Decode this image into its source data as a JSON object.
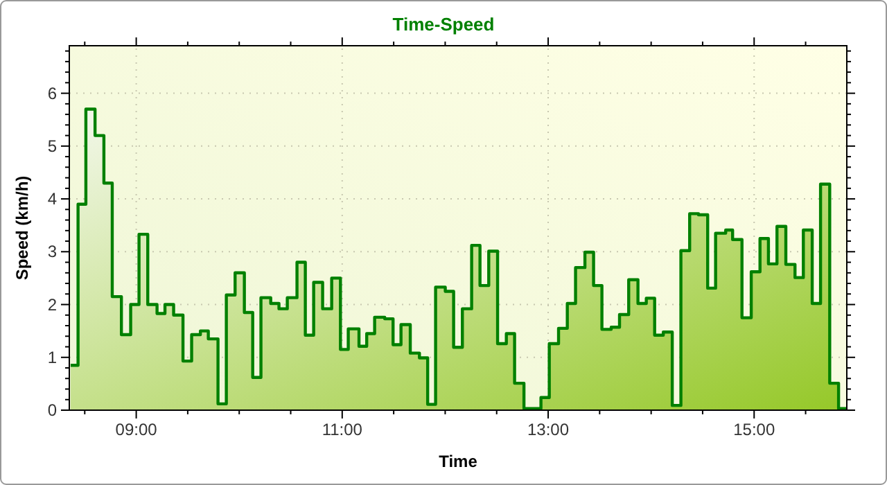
{
  "chart_data": {
    "type": "area",
    "title": "Time-Speed",
    "xlabel": "Time",
    "ylabel": "Speed (km/h)",
    "line_style": "solid",
    "grid": true,
    "x": [
      8.363,
      8.435,
      8.435,
      8.511,
      8.511,
      8.6,
      8.6,
      8.686,
      8.686,
      8.767,
      8.767,
      8.856,
      8.856,
      8.946,
      8.946,
      9.027,
      9.027,
      9.112,
      9.112,
      9.202,
      9.202,
      9.279,
      9.279,
      9.363,
      9.363,
      9.454,
      9.454,
      9.538,
      9.538,
      9.623,
      9.623,
      9.7,
      9.7,
      9.794,
      9.794,
      9.875,
      9.875,
      9.96,
      9.96,
      10.05,
      10.05,
      10.131,
      10.131,
      10.211,
      10.211,
      10.306,
      10.306,
      10.386,
      10.386,
      10.467,
      10.467,
      10.561,
      10.561,
      10.642,
      10.642,
      10.723,
      10.723,
      10.81,
      10.81,
      10.898,
      10.898,
      10.983,
      10.983,
      11.059,
      11.059,
      11.163,
      11.163,
      11.238,
      11.238,
      11.315,
      11.315,
      11.413,
      11.413,
      11.494,
      11.494,
      11.571,
      11.571,
      11.661,
      11.661,
      11.75,
      11.75,
      11.83,
      11.83,
      11.907,
      11.907,
      12.001,
      12.001,
      12.082,
      12.082,
      12.167,
      12.167,
      12.257,
      12.257,
      12.338,
      12.338,
      12.423,
      12.423,
      12.509,
      12.509,
      12.594,
      12.594,
      12.674,
      12.674,
      12.765,
      12.765,
      12.93,
      12.93,
      13.011,
      13.011,
      13.101,
      13.101,
      13.186,
      13.186,
      13.266,
      13.266,
      13.357,
      13.357,
      13.441,
      13.441,
      13.522,
      13.522,
      13.612,
      13.612,
      13.693,
      13.693,
      13.782,
      13.782,
      13.872,
      13.872,
      13.953,
      13.953,
      14.034,
      14.034,
      14.118,
      14.118,
      14.205,
      14.205,
      14.289,
      14.289,
      14.374,
      14.374,
      14.46,
      14.46,
      14.549,
      14.549,
      14.626,
      14.626,
      14.724,
      14.724,
      14.791,
      14.791,
      14.882,
      14.882,
      14.972,
      14.972,
      15.057,
      15.057,
      15.139,
      15.139,
      15.222,
      15.222,
      15.308,
      15.308,
      15.397,
      15.397,
      15.478,
      15.478,
      15.564,
      15.564,
      15.645,
      15.645,
      15.734,
      15.734,
      15.82,
      15.82,
      15.9
    ],
    "series": [
      {
        "color": "#008000",
        "values": [
          0.85,
          0.85,
          3.9,
          3.9,
          5.7,
          5.7,
          5.2,
          5.2,
          4.3,
          4.3,
          2.15,
          2.15,
          1.43,
          1.43,
          2.0,
          2.0,
          3.33,
          3.33,
          2.0,
          2.0,
          1.83,
          1.83,
          2.0,
          2.0,
          1.8,
          1.8,
          0.93,
          0.93,
          1.43,
          1.43,
          1.5,
          1.5,
          1.35,
          1.35,
          0.12,
          0.12,
          2.18,
          2.18,
          2.6,
          2.6,
          1.85,
          1.85,
          0.62,
          0.62,
          2.13,
          2.13,
          2.02,
          2.02,
          1.92,
          1.92,
          2.13,
          2.13,
          2.8,
          2.8,
          1.42,
          1.42,
          2.42,
          2.42,
          1.92,
          1.92,
          2.5,
          2.5,
          1.15,
          1.15,
          1.54,
          1.54,
          1.21,
          1.21,
          1.45,
          1.45,
          1.76,
          1.76,
          1.73,
          1.73,
          1.24,
          1.24,
          1.62,
          1.62,
          1.08,
          1.08,
          0.99,
          0.99,
          0.11,
          0.11,
          2.33,
          2.33,
          2.25,
          2.25,
          1.19,
          1.19,
          1.92,
          1.92,
          3.12,
          3.12,
          2.36,
          2.36,
          3.01,
          3.01,
          1.26,
          1.26,
          1.45,
          1.45,
          0.51,
          0.51,
          0.03,
          0.03,
          0.24,
          0.24,
          1.26,
          1.26,
          1.55,
          1.55,
          2.02,
          2.02,
          2.7,
          2.7,
          2.99,
          2.99,
          2.36,
          2.36,
          1.53,
          1.53,
          1.57,
          1.57,
          1.81,
          1.81,
          2.47,
          2.47,
          2.02,
          2.02,
          2.12,
          2.12,
          1.42,
          1.42,
          1.48,
          1.48,
          0.09,
          0.09,
          3.02,
          3.02,
          3.72,
          3.72,
          3.7,
          3.7,
          2.31,
          2.31,
          3.35,
          3.35,
          3.41,
          3.41,
          3.23,
          3.23,
          1.75,
          1.75,
          2.62,
          2.62,
          3.25,
          3.25,
          2.77,
          2.77,
          3.48,
          3.48,
          2.76,
          2.76,
          2.51,
          2.51,
          3.41,
          3.41,
          2.02,
          2.02,
          4.28,
          4.28,
          0.51,
          0.51,
          0.03,
          0.03
        ]
      }
    ],
    "xlim": [
      8.35,
      15.9
    ],
    "xticks": [
      {
        "value": 8.5,
        "label": null
      },
      {
        "value": 9,
        "label": "09:00"
      },
      {
        "value": 9.5,
        "label": null
      },
      {
        "value": 10,
        "label": null
      },
      {
        "value": 10.5,
        "label": null
      },
      {
        "value": 11,
        "label": "11:00"
      },
      {
        "value": 11.5,
        "label": null
      },
      {
        "value": 12,
        "label": null
      },
      {
        "value": 12.5,
        "label": null
      },
      {
        "value": 13,
        "label": "13:00"
      },
      {
        "value": 13.5,
        "label": null
      },
      {
        "value": 14,
        "label": null
      },
      {
        "value": 14.5,
        "label": null
      },
      {
        "value": 15,
        "label": "15:00"
      },
      {
        "value": 15.5,
        "label": null
      }
    ],
    "ylim": [
      0,
      6.9
    ],
    "yticks": [
      0,
      {
        "value": 0.2,
        "label": null
      },
      {
        "value": 0.4,
        "label": null
      },
      {
        "value": 0.6,
        "label": null
      },
      {
        "value": 0.8,
        "label": null
      },
      1,
      {
        "value": 1.2,
        "label": null
      },
      {
        "value": 1.4,
        "label": null
      },
      {
        "value": 1.6,
        "label": null
      },
      {
        "value": 1.8,
        "label": null
      },
      2,
      {
        "value": 2.2,
        "label": null
      },
      {
        "value": 2.4,
        "label": null
      },
      {
        "value": 2.6,
        "label": null
      },
      {
        "value": 2.8,
        "label": null
      },
      3,
      {
        "value": 3.2,
        "label": null
      },
      {
        "value": 3.4,
        "label": null
      },
      {
        "value": 3.6,
        "label": null
      },
      {
        "value": 3.8,
        "label": null
      },
      4,
      {
        "value": 4.2,
        "label": null
      },
      {
        "value": 4.4,
        "label": null
      },
      {
        "value": 4.6,
        "label": null
      },
      {
        "value": 4.8,
        "label": null
      },
      5,
      {
        "value": 5.2,
        "label": null
      },
      {
        "value": 5.4,
        "label": null
      },
      {
        "value": 5.6,
        "label": null
      },
      {
        "value": 5.8,
        "label": null
      },
      6,
      {
        "value": 6.2,
        "label": null
      },
      {
        "value": 6.4,
        "label": null
      },
      {
        "value": 6.6,
        "label": null
      },
      {
        "value": 6.8,
        "label": null
      }
    ]
  }
}
